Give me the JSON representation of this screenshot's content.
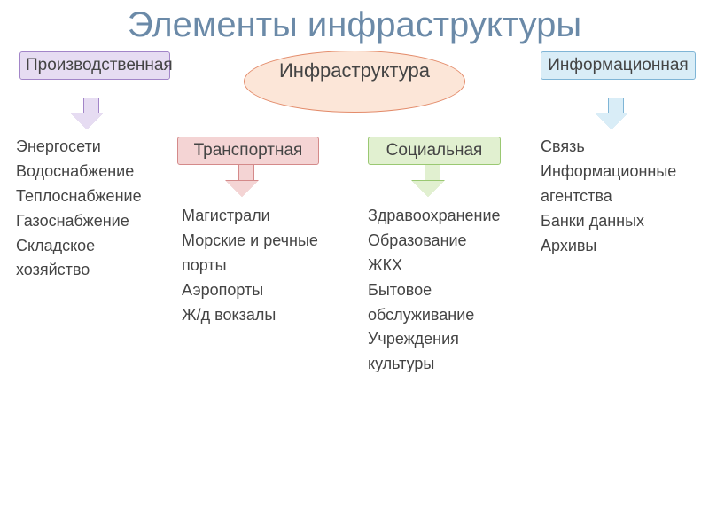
{
  "title": "Элементы инфраструктуры",
  "center": {
    "label": "Инфраструктура",
    "bg": "#fce6d8",
    "border": "#e38b6a"
  },
  "categories": {
    "production": {
      "label": "Производственная",
      "bg": "#e6dcf2",
      "border": "#a285c8",
      "arrow_fill": "#e6dcf2",
      "arrow_border": "#a285c8",
      "items": [
        "Энергосети",
        "Водоснабжение",
        "Теплоснабжение",
        "Газоснабжение",
        "Складское хозяйство"
      ]
    },
    "transport": {
      "label": "Транспортная",
      "bg": "#f4d4d4",
      "border": "#d48a8a",
      "arrow_fill": "#f4d4d4",
      "arrow_border": "#d48a8a",
      "items": [
        "Магистрали",
        "Морские            и речные порты",
        "Аэропорты",
        "Ж/д вокзалы"
      ]
    },
    "social": {
      "label": "Социальная",
      "bg": "#e1f0d0",
      "border": "#9ac872",
      "arrow_fill": "#e1f0d0",
      "arrow_border": "#9ac872",
      "items": [
        "Здравоохранение",
        "Образование",
        "ЖКХ",
        "Бытовое обслуживание",
        "Учреждения культуры"
      ]
    },
    "info": {
      "label": "Информационная",
      "bg": "#d9edf7",
      "border": "#7fb5d6",
      "arrow_fill": "#d9edf7",
      "arrow_border": "#7fb5d6",
      "items": [
        "Связь",
        "Информационные агентства",
        "Банки данных",
        "Архивы"
      ]
    }
  },
  "layout": {
    "title_fontsize": 40,
    "title_color": "#6b8aa8",
    "box_fontsize": 19,
    "list_fontsize": 18,
    "background": "#ffffff",
    "text_color": "#4a4a4a"
  }
}
